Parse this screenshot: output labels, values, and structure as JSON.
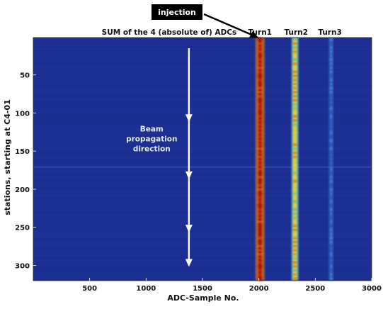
{
  "chart_data": {
    "type": "heatmap",
    "title": "SUM of the 4 (absolute of) ADCs",
    "xlabel": "ADC-Sample No.",
    "ylabel": "stations, starting at C4-01",
    "xlim": [
      0,
      3000
    ],
    "ylim": [
      320,
      1
    ],
    "x_ticks": [
      500,
      1000,
      1500,
      2000,
      2500,
      3000
    ],
    "y_ticks": [
      50,
      100,
      150,
      200,
      250,
      300
    ],
    "colormap": "jet",
    "background_color": "#1d2f93",
    "bands": [
      {
        "name": "Turn1",
        "x_center": 2010,
        "x_width": 70,
        "intensity": "high"
      },
      {
        "name": "Turn2",
        "x_center": 2320,
        "x_width": 55,
        "intensity": "medium"
      },
      {
        "name": "Turn3",
        "x_center": 2640,
        "x_width": 40,
        "intensity": "low"
      }
    ],
    "horizontal_streak_station": 171,
    "annotations": {
      "injection_label": "injection",
      "beam_text": [
        "Beam",
        "propagation",
        "direction"
      ],
      "arrow_x": 1380,
      "arrow_y_range": [
        15,
        300
      ],
      "arrow_heads_at": [
        110,
        185,
        255,
        300
      ]
    }
  }
}
